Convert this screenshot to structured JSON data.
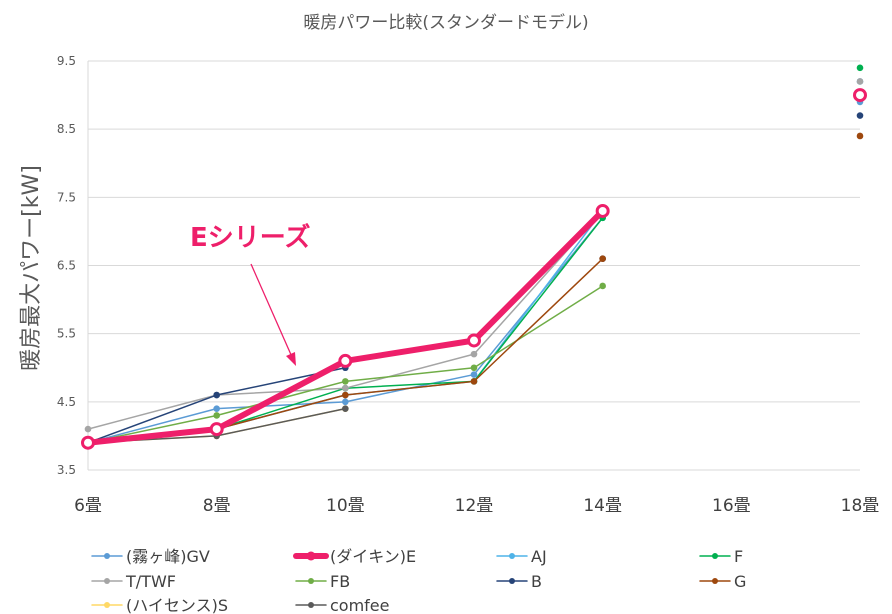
{
  "chart_data": {
    "type": "line",
    "title": "暖房パワー比較(スタンダードモデル)",
    "xlabel": "",
    "ylabel": "暖房最大パワー[kW]",
    "categories": [
      "6畳",
      "8畳",
      "10畳",
      "12畳",
      "14畳",
      "16畳",
      "18畳"
    ],
    "ylim": [
      3.5,
      9.5
    ],
    "yticks": [
      "3.5",
      "4.5",
      "5.5",
      "6.5",
      "7.5",
      "8.5",
      "9.5"
    ],
    "grid": "horizontal",
    "legend_position": "bottom",
    "annotation": "Eシリーズ",
    "series": [
      {
        "name": "(霧ヶ峰)GV",
        "color": "#5b9bd5",
        "width": 1.5,
        "values": [
          3.9,
          4.4,
          4.5,
          4.9,
          7.2,
          null,
          8.9
        ]
      },
      {
        "name": "(ダイキン)E",
        "color": "#ee1f6a",
        "width": 6,
        "values": [
          3.9,
          4.1,
          5.1,
          5.4,
          7.3,
          null,
          9.0
        ]
      },
      {
        "name": "AJ",
        "color": "#4fb3e8",
        "width": 1.5,
        "values": [
          3.9,
          4.1,
          4.6,
          4.8,
          7.3,
          null,
          9.2
        ]
      },
      {
        "name": "F",
        "color": "#00b050",
        "width": 1.5,
        "values": [
          3.9,
          4.1,
          4.7,
          4.8,
          7.2,
          null,
          9.4
        ]
      },
      {
        "name": "T/TWF",
        "color": "#a5a5a5",
        "width": 1.5,
        "values": [
          4.1,
          4.6,
          4.7,
          5.2,
          7.3,
          null,
          9.2
        ]
      },
      {
        "name": "FB",
        "color": "#70ad47",
        "width": 1.5,
        "values": [
          3.9,
          4.3,
          4.8,
          5.0,
          6.2,
          null,
          null
        ]
      },
      {
        "name": "B",
        "color": "#264478",
        "width": 1.5,
        "values": [
          3.9,
          4.6,
          5.0,
          null,
          6.6,
          null,
          8.7
        ]
      },
      {
        "name": "G",
        "color": "#9e480e",
        "width": 1.5,
        "values": [
          3.9,
          4.1,
          4.6,
          4.8,
          6.6,
          null,
          8.4
        ]
      },
      {
        "name": "(ハイセンス)S",
        "color": "#ffd966",
        "width": 1.5,
        "values": [
          3.9,
          4.0,
          4.4,
          null,
          null,
          null,
          null
        ]
      },
      {
        "name": "comfee",
        "color": "#5a5a5a",
        "width": 1.5,
        "values": [
          3.9,
          4.0,
          4.4,
          null,
          null,
          null,
          null
        ]
      }
    ]
  }
}
